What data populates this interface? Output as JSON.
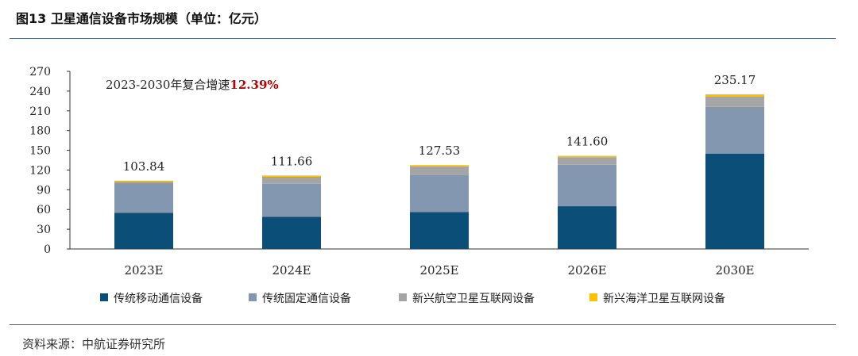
{
  "header": {
    "title": "图13  卫星通信设备市场规模（单位：亿元）"
  },
  "footer": {
    "source": "资料来源：中航证券研究所"
  },
  "chart_data": {
    "type": "bar",
    "stacked": true,
    "title": "图13  卫星通信设备市场规模（单位：亿元）",
    "categories": [
      "2023E",
      "2024E",
      "2025E",
      "2026E",
      "2030E"
    ],
    "ylim": [
      0,
      270
    ],
    "yticks": [
      0,
      30,
      60,
      90,
      120,
      150,
      180,
      210,
      240,
      270
    ],
    "totals": [
      "103.84",
      "111.66",
      "127.53",
      "141.60",
      "235.17"
    ],
    "series": [
      {
        "name": "传统移动通信设备",
        "color": "#0b4f79",
        "values": [
          55,
          49,
          56,
          65,
          145
        ]
      },
      {
        "name": "传统固定通信设备",
        "color": "#8497b0",
        "values": [
          45,
          50,
          57,
          63,
          71
        ]
      },
      {
        "name": "新兴航空卫星互联网设备",
        "color": "#a5a5a5",
        "values": [
          2.8,
          10.7,
          12.5,
          11.6,
          16.2
        ]
      },
      {
        "name": "新兴海洋卫星互联网设备",
        "color": "#ffc000",
        "values": [
          1.04,
          1.96,
          2.03,
          2.0,
          2.97
        ]
      }
    ],
    "annotation": {
      "label": "2023-2030年复合增速",
      "value": "12.39%"
    },
    "legend_position": "bottom"
  }
}
